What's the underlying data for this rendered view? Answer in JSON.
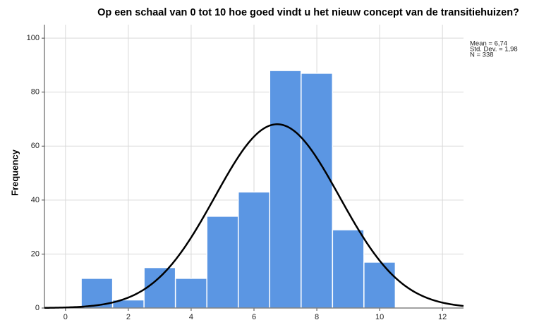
{
  "chart_data": {
    "type": "histogram",
    "title": "Op een schaal van 0 tot 10 hoe goed vindt u het nieuw concept van de transitiehuizen?",
    "y_label": "Frequency",
    "bins": [
      0.5,
      1.5,
      2.5,
      3.5,
      4.5,
      5.5,
      6.5,
      7.5,
      8.5,
      9.5,
      10.5
    ],
    "values": [
      11,
      3,
      15,
      11,
      34,
      43,
      88,
      87,
      29,
      17
    ],
    "color": "#5b96e3",
    "xlim": [
      -0.67,
      12.67
    ],
    "xticks": [
      0,
      2,
      4,
      6,
      8,
      10,
      12
    ],
    "ylim": [
      0,
      105
    ],
    "yticks": [
      0,
      20,
      40,
      60,
      80,
      100
    ],
    "grid": true,
    "curve_color": "#000000",
    "stats": [
      {
        "value": 6.74,
        "label": "Mean = 6,74"
      },
      {
        "value": 1.98,
        "label": "Std. Dev. = 1,98"
      },
      {
        "value": 338,
        "label": "N = 338"
      }
    ]
  }
}
